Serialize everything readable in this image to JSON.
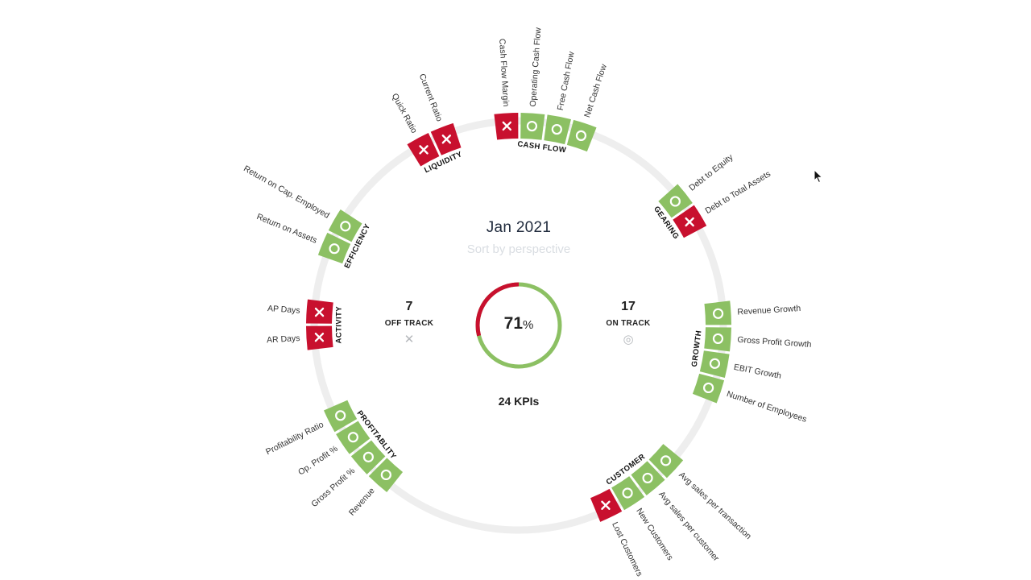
{
  "center": {
    "period": "Jan 2021",
    "sort_label": "Sort by perspective",
    "off_track_count": "7",
    "off_track_label": "OFF TRACK",
    "on_track_count": "17",
    "on_track_label": "ON TRACK",
    "percent_value": "71",
    "percent_unit": "%",
    "percent_fraction": 0.71,
    "kpi_total": "24 KPIs"
  },
  "colors": {
    "on_track": "#8cc063",
    "off_track": "#c8102e",
    "ring": "#eeeeee",
    "text": "#222222"
  },
  "groups": [
    {
      "name": "CASH FLOW",
      "kpis": [
        {
          "label": "Cash Flow Margin",
          "status": "off"
        },
        {
          "label": "Operating Cash Flow",
          "status": "on"
        },
        {
          "label": "Free Cash Flow",
          "status": "on"
        },
        {
          "label": "Net Cash Flow",
          "status": "on"
        }
      ]
    },
    {
      "name": "GEARING",
      "kpis": [
        {
          "label": "Debt to Equity",
          "status": "on"
        },
        {
          "label": "Debt to Total Assets",
          "status": "off"
        }
      ]
    },
    {
      "name": "GROWTH",
      "kpis": [
        {
          "label": "Revenue Growth",
          "status": "on"
        },
        {
          "label": "Gross Profit Growth",
          "status": "on"
        },
        {
          "label": "EBIT Growth",
          "status": "on"
        },
        {
          "label": "Number of Employees",
          "status": "on"
        }
      ]
    },
    {
      "name": "CUSTOMER",
      "kpis": [
        {
          "label": "Avg sales per transaction",
          "status": "on"
        },
        {
          "label": "Avg sales per customer",
          "status": "on"
        },
        {
          "label": "New Customers",
          "status": "on"
        },
        {
          "label": "Lost Customers",
          "status": "off"
        }
      ]
    },
    {
      "name": "PROFITABLITY",
      "kpis": [
        {
          "label": "Revenue",
          "status": "on"
        },
        {
          "label": "Gross Profit %",
          "status": "on"
        },
        {
          "label": "Op. Profit %",
          "status": "on"
        },
        {
          "label": "Profitability Ratio",
          "status": "on"
        }
      ]
    },
    {
      "name": "ACTIVITY",
      "kpis": [
        {
          "label": "AR Days",
          "status": "off"
        },
        {
          "label": "AP Days",
          "status": "off"
        }
      ]
    },
    {
      "name": "EFFICIENCY",
      "kpis": [
        {
          "label": "Return on Assets",
          "status": "on"
        },
        {
          "label": "Return on Cap. Employed",
          "status": "on"
        }
      ]
    },
    {
      "name": "LIQUIDITY",
      "kpis": [
        {
          "label": "Quick Ratio",
          "status": "off"
        },
        {
          "label": "Current Ratio",
          "status": "off"
        }
      ]
    }
  ]
}
